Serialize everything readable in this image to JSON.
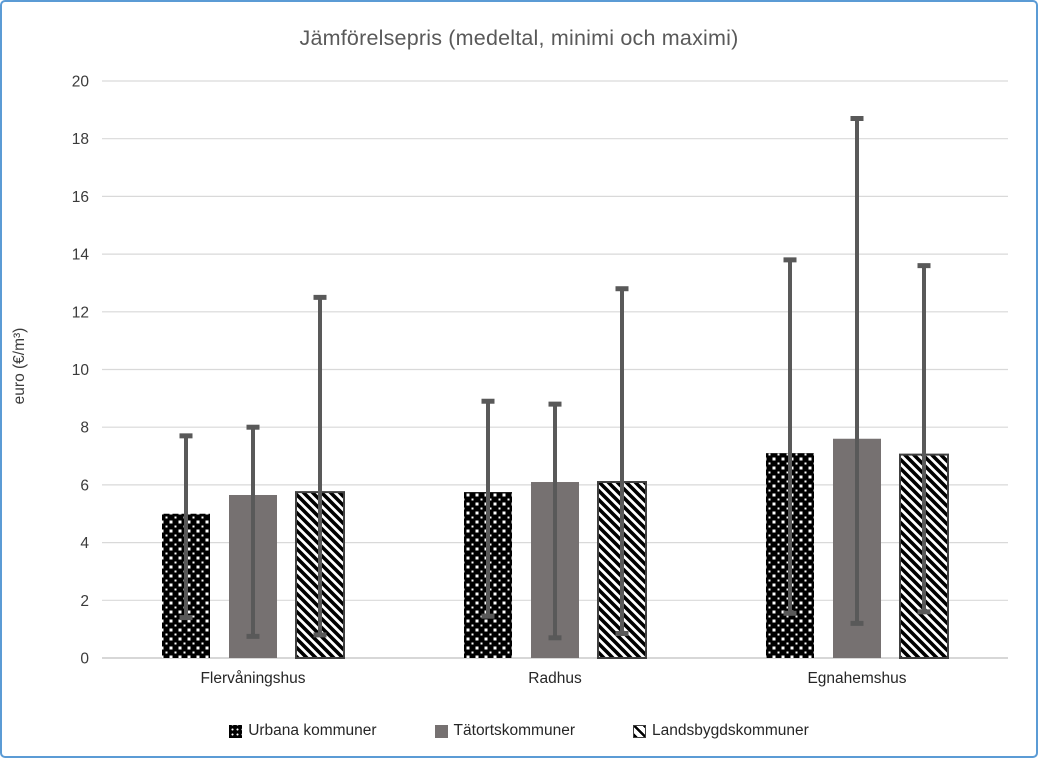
{
  "chart_data": {
    "type": "bar",
    "title": "Jämförelsepris (medeltal, minimi och maximi)",
    "ylabel": "euro (€/m³)",
    "xlabel": "",
    "ylim": [
      0,
      20
    ],
    "yticks": [
      0,
      2,
      4,
      6,
      8,
      10,
      12,
      14,
      16,
      18,
      20
    ],
    "grid": true,
    "legend_position": "bottom",
    "categories": [
      "Flervåningshus",
      "Radhus",
      "Egnahemshus"
    ],
    "series": [
      {
        "name": "Urbana kommuner",
        "pattern": "black-white-dots",
        "values": [
          5.0,
          5.75,
          7.1
        ],
        "min": [
          1.4,
          1.45,
          1.55
        ],
        "max": [
          7.7,
          8.9,
          13.8
        ]
      },
      {
        "name": "Tätortskommuner",
        "pattern": "solid-gray",
        "values": [
          5.65,
          6.1,
          7.6
        ],
        "min": [
          0.75,
          0.7,
          1.2
        ],
        "max": [
          8.0,
          8.8,
          18.7
        ]
      },
      {
        "name": "Landsbygdskommuner",
        "pattern": "diagonal-hatch",
        "values": [
          5.75,
          6.1,
          7.05
        ],
        "min": [
          0.8,
          0.85,
          1.6
        ],
        "max": [
          12.5,
          12.8,
          13.6
        ]
      }
    ],
    "colors": {
      "bar_black": "#000000",
      "bar_gray": "#767171",
      "hatch_outline": "#404040",
      "error_bar": "#595959",
      "gridline": "#D9D9D9",
      "axis_line": "#BFBFBF",
      "title_text": "#595959",
      "axis_text": "#3B3B3B",
      "label_text": "#262626",
      "frame_border": "#5B9BD5"
    }
  }
}
